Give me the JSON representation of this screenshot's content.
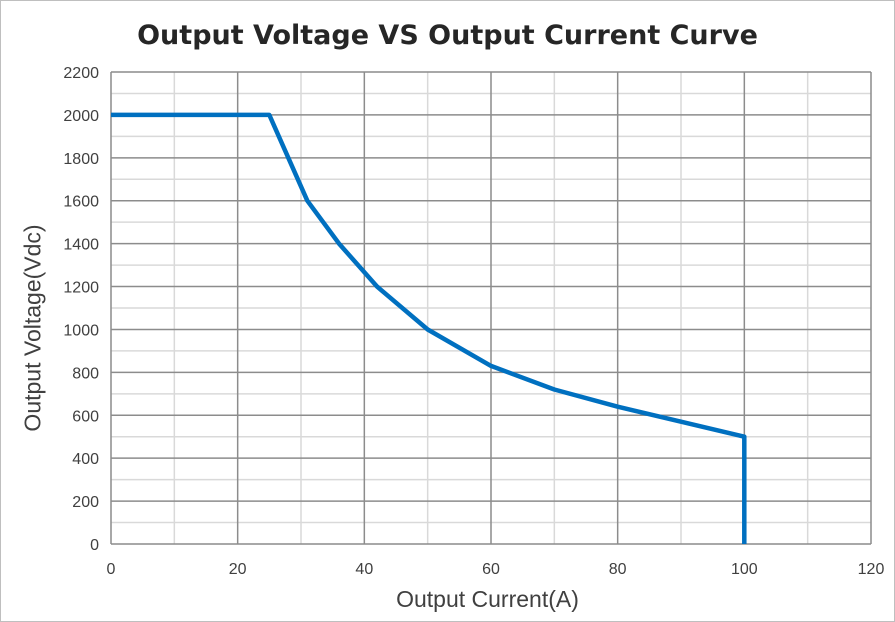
{
  "chart_data": {
    "type": "line",
    "title": "Output Voltage VS Output Current Curve",
    "xlabel": "Output Current(A)",
    "ylabel": "Output Voltage(Vdc)",
    "xlim": [
      0,
      120
    ],
    "ylim": [
      0,
      2200
    ],
    "x_major_ticks": [
      0,
      20,
      40,
      60,
      80,
      100,
      120
    ],
    "y_major_ticks": [
      0,
      200,
      400,
      600,
      800,
      1000,
      1200,
      1400,
      1600,
      1800,
      2000,
      2200
    ],
    "x_minor_step": 10,
    "y_minor_step": 100,
    "grid": true,
    "legend": "none",
    "series": [
      {
        "color": "#0070C0",
        "points": [
          [
            0,
            2000
          ],
          [
            25,
            2000
          ],
          [
            31,
            1600
          ],
          [
            36,
            1400
          ],
          [
            42,
            1200
          ],
          [
            50,
            1000
          ],
          [
            60,
            830
          ],
          [
            70,
            720
          ],
          [
            80,
            640
          ],
          [
            90,
            570
          ],
          [
            100,
            500
          ],
          [
            100,
            0
          ]
        ]
      }
    ]
  }
}
